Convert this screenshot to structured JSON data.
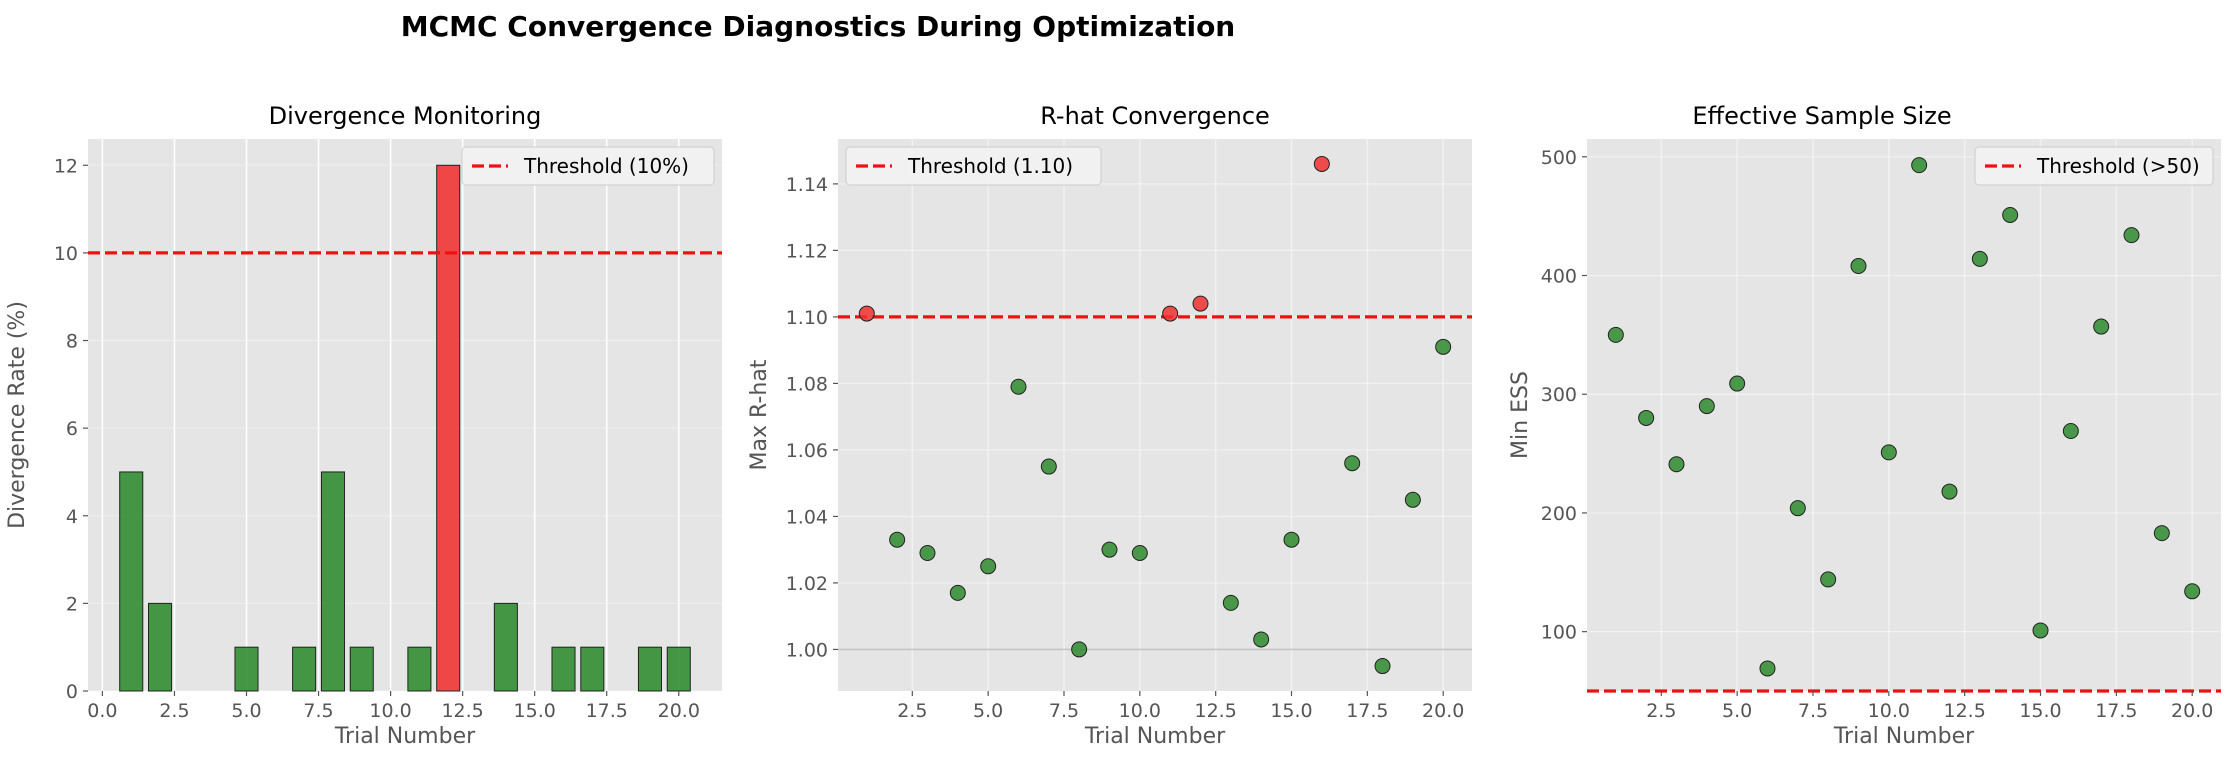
{
  "figure": {
    "title": "MCMC Convergence Diagnostics During Optimization"
  },
  "colors": {
    "pass": "#2e8b2e",
    "fail": "#f03030",
    "threshold": "#ee1111",
    "panel_bg": "#e5e5e5",
    "grid": "#ffffff"
  },
  "chart_data": [
    {
      "type": "bar",
      "title": "Divergence Monitoring",
      "xlabel": "Trial Number",
      "ylabel": "Divergence Rate (%)",
      "xlim": [
        -0.5,
        21.5
      ],
      "ylim": [
        0,
        12.6
      ],
      "xticks": [
        0.0,
        2.5,
        5.0,
        7.5,
        10.0,
        12.5,
        15.0,
        17.5,
        20.0
      ],
      "xtick_labels": [
        "0.0",
        "2.5",
        "5.0",
        "7.5",
        "10.0",
        "12.5",
        "15.0",
        "17.5",
        "20.0"
      ],
      "yticks": [
        0,
        2,
        4,
        6,
        8,
        10,
        12
      ],
      "ytick_labels": [
        "0",
        "2",
        "4",
        "6",
        "8",
        "10",
        "12"
      ],
      "x": [
        1,
        2,
        3,
        4,
        5,
        6,
        7,
        8,
        9,
        10,
        11,
        12,
        13,
        14,
        15,
        16,
        17,
        18,
        19,
        20
      ],
      "values": [
        5,
        2,
        0,
        0,
        1,
        0,
        1,
        5,
        1,
        0,
        1,
        12,
        0,
        2,
        0,
        1,
        1,
        0,
        1,
        1
      ],
      "threshold": {
        "value": 10,
        "label": "Threshold (10%)",
        "direction": "above-fails"
      },
      "legend_position": "upper right",
      "grid": true
    },
    {
      "type": "scatter",
      "title": "R-hat Convergence",
      "xlabel": "Trial Number",
      "ylabel": "Max R-hat",
      "xlim": [
        0.05,
        20.95
      ],
      "ylim": [
        0.9875,
        1.1535
      ],
      "xticks": [
        2.5,
        5.0,
        7.5,
        10.0,
        12.5,
        15.0,
        17.5,
        20.0
      ],
      "xtick_labels": [
        "2.5",
        "5.0",
        "7.5",
        "10.0",
        "12.5",
        "15.0",
        "17.5",
        "20.0"
      ],
      "yticks": [
        1.0,
        1.02,
        1.04,
        1.06,
        1.08,
        1.1,
        1.12,
        1.14
      ],
      "ytick_labels": [
        "1.00",
        "1.02",
        "1.04",
        "1.06",
        "1.08",
        "1.10",
        "1.12",
        "1.14"
      ],
      "x": [
        1,
        2,
        3,
        4,
        5,
        6,
        7,
        8,
        9,
        10,
        11,
        12,
        13,
        14,
        15,
        16,
        17,
        18,
        19,
        20
      ],
      "values": [
        1.101,
        1.033,
        1.029,
        1.017,
        1.025,
        1.079,
        1.055,
        1.0,
        1.03,
        1.029,
        1.101,
        1.104,
        1.014,
        1.003,
        1.033,
        1.146,
        1.056,
        0.995,
        1.045,
        1.091
      ],
      "threshold": {
        "value": 1.1,
        "label": "Threshold (1.10)",
        "direction": "above-fails"
      },
      "reference_line": 1.0,
      "legend_position": "upper left",
      "grid": true
    },
    {
      "type": "scatter",
      "title": "Effective Sample Size",
      "xlabel": "Trial Number",
      "ylabel": "Min ESS",
      "xlim": [
        0.05,
        20.95
      ],
      "ylim": [
        50,
        515
      ],
      "xticks": [
        2.5,
        5.0,
        7.5,
        10.0,
        12.5,
        15.0,
        17.5,
        20.0
      ],
      "xtick_labels": [
        "2.5",
        "5.0",
        "7.5",
        "10.0",
        "12.5",
        "15.0",
        "17.5",
        "20.0"
      ],
      "yticks": [
        100,
        200,
        300,
        400,
        500
      ],
      "ytick_labels": [
        "100",
        "200",
        "300",
        "400",
        "500"
      ],
      "x": [
        1,
        2,
        3,
        4,
        5,
        6,
        7,
        8,
        9,
        10,
        11,
        12,
        13,
        14,
        15,
        16,
        17,
        18,
        19,
        20
      ],
      "values": [
        350,
        280,
        241,
        290,
        309,
        69,
        204,
        144,
        408,
        251,
        493,
        218,
        414,
        451,
        101,
        269,
        357,
        434,
        183,
        134
      ],
      "threshold": {
        "value": 50,
        "label": "Threshold (>50)",
        "direction": "below-fails"
      },
      "legend_position": "upper right",
      "grid": true
    }
  ]
}
